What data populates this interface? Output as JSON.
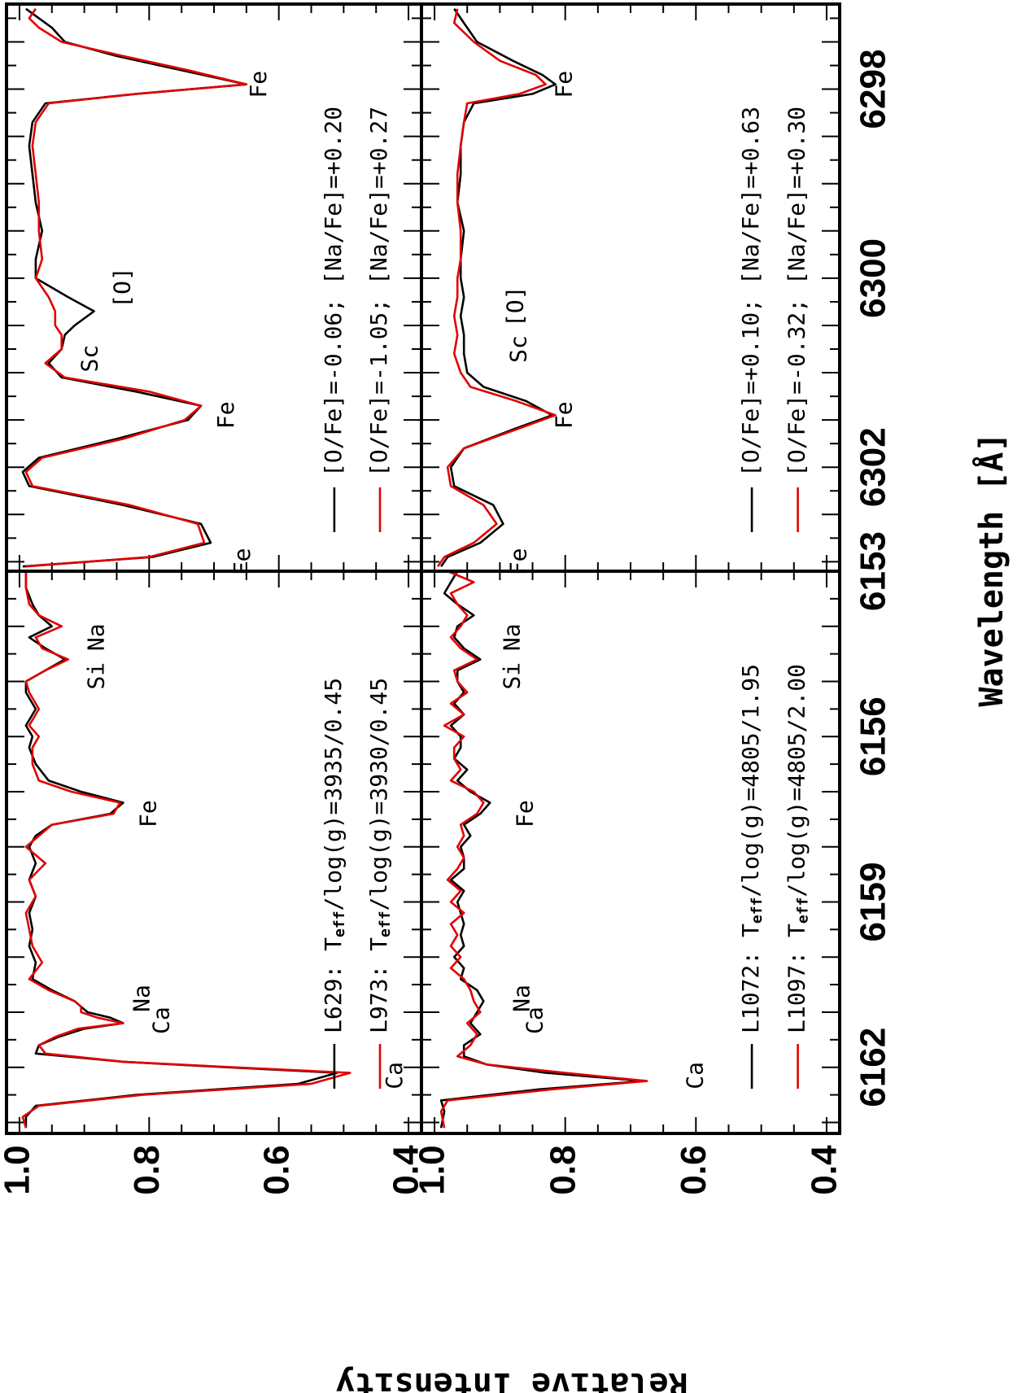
{
  "figure": {
    "xlabel": "Wavelength [Å]",
    "ylabel": "Relative Intensity",
    "y_ticks": [
      "1.0",
      "0.8",
      "0.6",
      "0.4"
    ],
    "left_x_ticks": [
      "6153",
      "6156",
      "6159",
      "6162"
    ],
    "right_x_ticks": [
      "6298",
      "6300",
      "6302"
    ]
  },
  "chart_data": [
    {
      "type": "line",
      "panel": "top-left",
      "xlim": [
        6153,
        6163.2
      ],
      "ylim": [
        0.38,
        1.02
      ],
      "legend": {
        "placement": "bottom-right",
        "entries": [
          {
            "label": "L629: T",
            "sub": "eff",
            "suffix": "/log(g)=3935/0.45"
          },
          {
            "label": "L973: T",
            "sub": "eff",
            "suffix": "/log(g)=3930/0.45"
          }
        ]
      },
      "line_labels": [
        {
          "text": "Na",
          "x": 6154.2,
          "y": 0.88
        },
        {
          "text": "Si",
          "x": 6154.9,
          "y": 0.88
        },
        {
          "text": "Fe",
          "x": 6157.4,
          "y": 0.8
        },
        {
          "text": "Na",
          "x": 6160.75,
          "y": 0.81
        },
        {
          "text": "Ca",
          "x": 6161.15,
          "y": 0.78
        },
        {
          "text": "Ca",
          "x": 6162.15,
          "y": 0.42
        }
      ],
      "series": [
        {
          "name": "L629",
          "color": "#000000",
          "x": [
            6153.0,
            6153.3,
            6153.6,
            6153.8,
            6154.0,
            6154.2,
            6154.4,
            6154.6,
            6154.8,
            6155.0,
            6155.2,
            6155.5,
            6155.8,
            6156.0,
            6156.2,
            6156.5,
            6156.8,
            6157.0,
            6157.2,
            6157.4,
            6157.6,
            6157.8,
            6158.0,
            6158.3,
            6158.6,
            6158.9,
            6159.2,
            6159.5,
            6159.8,
            6160.1,
            6160.4,
            6160.6,
            6160.8,
            6160.9,
            6161.0,
            6161.1,
            6161.2,
            6161.3,
            6161.45,
            6161.6,
            6161.75,
            6161.9,
            6162.0,
            6162.1,
            6162.3,
            6162.5,
            6162.7,
            6162.9,
            6163.1
          ],
          "y": [
            0.99,
            0.99,
            0.98,
            0.97,
            0.95,
            0.985,
            0.96,
            0.93,
            0.96,
            0.99,
            0.99,
            0.975,
            0.99,
            0.98,
            0.985,
            0.975,
            0.955,
            0.905,
            0.84,
            0.86,
            0.95,
            0.975,
            0.985,
            0.975,
            0.985,
            0.975,
            0.985,
            0.98,
            0.985,
            0.975,
            0.98,
            0.95,
            0.915,
            0.905,
            0.895,
            0.86,
            0.84,
            0.9,
            0.94,
            0.97,
            0.975,
            0.84,
            0.68,
            0.51,
            0.57,
            0.82,
            0.975,
            0.99,
            0.99
          ]
        },
        {
          "name": "L973",
          "color": "#e10000",
          "x": [
            6153.0,
            6153.3,
            6153.6,
            6153.8,
            6154.0,
            6154.2,
            6154.4,
            6154.6,
            6154.8,
            6155.0,
            6155.2,
            6155.5,
            6155.8,
            6156.0,
            6156.2,
            6156.5,
            6156.8,
            6157.0,
            6157.2,
            6157.4,
            6157.6,
            6157.8,
            6158.0,
            6158.3,
            6158.6,
            6158.9,
            6159.2,
            6159.5,
            6159.8,
            6160.1,
            6160.4,
            6160.6,
            6160.8,
            6160.9,
            6161.0,
            6161.1,
            6161.2,
            6161.3,
            6161.45,
            6161.6,
            6161.75,
            6161.9,
            6162.0,
            6162.1,
            6162.3,
            6162.5,
            6162.7,
            6162.9,
            6163.1
          ],
          "y": [
            0.99,
            0.99,
            0.985,
            0.97,
            0.935,
            0.975,
            0.965,
            0.925,
            0.96,
            0.99,
            0.985,
            0.97,
            0.985,
            0.97,
            0.98,
            0.98,
            0.97,
            0.92,
            0.845,
            0.855,
            0.95,
            0.97,
            0.99,
            0.96,
            0.985,
            0.975,
            0.99,
            0.985,
            0.98,
            0.965,
            0.985,
            0.955,
            0.915,
            0.905,
            0.905,
            0.88,
            0.84,
            0.91,
            0.945,
            0.97,
            0.96,
            0.84,
            0.67,
            0.49,
            0.55,
            0.81,
            0.97,
            0.995,
            0.99
          ]
        }
      ]
    },
    {
      "type": "line",
      "panel": "bottom-left",
      "xlim": [
        6153,
        6163.2
      ],
      "ylim": [
        0.38,
        1.02
      ],
      "legend": {
        "placement": "bottom-right",
        "entries": [
          {
            "label": "L1072: T",
            "sub": "eff",
            "suffix": "/log(g)=4805/1.95"
          },
          {
            "label": "L1097: T",
            "sub": "eff",
            "suffix": "/log(g)=4805/2.00"
          }
        ]
      },
      "line_labels": [
        {
          "text": "Na",
          "x": 6154.2,
          "y": 0.88
        },
        {
          "text": "Si",
          "x": 6154.9,
          "y": 0.88
        },
        {
          "text": "Fe",
          "x": 6157.4,
          "y": 0.86
        },
        {
          "text": "Na",
          "x": 6160.75,
          "y": 0.865
        },
        {
          "text": "Ca",
          "x": 6161.15,
          "y": 0.845
        },
        {
          "text": "Ca",
          "x": 6162.15,
          "y": 0.6
        }
      ],
      "series": [
        {
          "name": "L1072",
          "color": "#000000",
          "x": [
            6153.0,
            6153.2,
            6153.4,
            6153.6,
            6153.8,
            6154.0,
            6154.2,
            6154.4,
            6154.6,
            6154.8,
            6155.0,
            6155.2,
            6155.4,
            6155.6,
            6155.8,
            6156.0,
            6156.2,
            6156.4,
            6156.6,
            6156.8,
            6157.0,
            6157.2,
            6157.4,
            6157.6,
            6157.8,
            6158.0,
            6158.2,
            6158.4,
            6158.6,
            6158.8,
            6159.0,
            6159.2,
            6159.4,
            6159.6,
            6159.8,
            6160.0,
            6160.2,
            6160.4,
            6160.6,
            6160.8,
            6161.0,
            6161.2,
            6161.4,
            6161.6,
            6161.8,
            6161.95,
            6162.1,
            6162.25,
            6162.4,
            6162.6,
            6162.8,
            6163.1
          ],
          "y": [
            0.965,
            0.975,
            0.985,
            0.965,
            0.94,
            0.965,
            0.97,
            0.955,
            0.93,
            0.965,
            0.965,
            0.955,
            0.97,
            0.955,
            0.975,
            0.96,
            0.96,
            0.97,
            0.95,
            0.965,
            0.945,
            0.915,
            0.93,
            0.955,
            0.945,
            0.96,
            0.955,
            0.955,
            0.975,
            0.955,
            0.965,
            0.96,
            0.955,
            0.96,
            0.955,
            0.97,
            0.955,
            0.96,
            0.935,
            0.925,
            0.935,
            0.945,
            0.93,
            0.955,
            0.955,
            0.92,
            0.83,
            0.68,
            0.84,
            0.99,
            0.985,
            0.99
          ]
        },
        {
          "name": "L1097",
          "color": "#e10000",
          "x": [
            6153.0,
            6153.2,
            6153.4,
            6153.6,
            6153.8,
            6154.0,
            6154.2,
            6154.4,
            6154.6,
            6154.8,
            6155.0,
            6155.2,
            6155.4,
            6155.6,
            6155.8,
            6156.0,
            6156.2,
            6156.4,
            6156.6,
            6156.8,
            6157.0,
            6157.2,
            6157.4,
            6157.6,
            6157.8,
            6158.0,
            6158.2,
            6158.4,
            6158.6,
            6158.8,
            6159.0,
            6159.2,
            6159.4,
            6159.6,
            6159.8,
            6160.0,
            6160.2,
            6160.4,
            6160.6,
            6160.8,
            6161.0,
            6161.2,
            6161.4,
            6161.6,
            6161.8,
            6161.95,
            6162.1,
            6162.25,
            6162.4,
            6162.6,
            6162.8,
            6163.1
          ],
          "y": [
            0.98,
            0.94,
            0.975,
            0.965,
            0.95,
            0.96,
            0.975,
            0.96,
            0.935,
            0.97,
            0.965,
            0.95,
            0.975,
            0.955,
            0.985,
            0.955,
            0.97,
            0.97,
            0.96,
            0.975,
            0.94,
            0.925,
            0.935,
            0.96,
            0.955,
            0.965,
            0.955,
            0.965,
            0.98,
            0.96,
            0.975,
            0.955,
            0.975,
            0.965,
            0.975,
            0.96,
            0.975,
            0.955,
            0.945,
            0.94,
            0.93,
            0.95,
            0.935,
            0.945,
            0.965,
            0.92,
            0.8,
            0.675,
            0.82,
            0.98,
            0.99,
            0.985
          ]
        }
      ]
    },
    {
      "type": "line",
      "panel": "top-right",
      "xlim": [
        6297.1,
        6303.1
      ],
      "ylim": [
        0.38,
        1.02
      ],
      "legend": {
        "placement": "bottom-right",
        "entries": [
          {
            "label": "[O/Fe]=-0.06; [Na/Fe]=+0.20"
          },
          {
            "label": "[O/Fe]=-1.05; [Na/Fe]=+0.27"
          }
        ]
      },
      "line_labels": [
        {
          "text": "Fe",
          "x": 6297.95,
          "y": 0.63
        },
        {
          "text": "[O]",
          "x": 6300.1,
          "y": 0.84
        },
        {
          "text": "Sc",
          "x": 6300.85,
          "y": 0.89
        },
        {
          "text": "Fe",
          "x": 6301.45,
          "y": 0.68
        },
        {
          "text": "Fe",
          "x": 6303.0,
          "y": 0.655
        }
      ],
      "series": [
        {
          "name": "[O/Fe]=-0.06",
          "color": "#000000",
          "x": [
            6297.15,
            6297.25,
            6297.35,
            6297.5,
            6297.65,
            6297.8,
            6297.95,
            6298.05,
            6298.15,
            6298.35,
            6298.6,
            6298.9,
            6299.2,
            6299.5,
            6299.8,
            6300.0,
            6300.2,
            6300.35,
            6300.5,
            6300.6,
            6300.75,
            6300.9,
            6301.05,
            6301.2,
            6301.35,
            6301.5,
            6301.7,
            6301.9,
            6302.05,
            6302.2,
            6302.4,
            6302.6,
            6302.8,
            6302.95,
            6303.05
          ],
          "y": [
            0.99,
            0.97,
            0.95,
            0.93,
            0.85,
            0.75,
            0.65,
            0.82,
            0.96,
            0.98,
            0.985,
            0.98,
            0.975,
            0.965,
            0.975,
            0.975,
            0.925,
            0.885,
            0.915,
            0.93,
            0.935,
            0.955,
            0.935,
            0.82,
            0.72,
            0.74,
            0.85,
            0.97,
            0.995,
            0.985,
            0.84,
            0.72,
            0.705,
            0.795,
            0.995
          ]
        },
        {
          "name": "[O/Fe]=-1.05",
          "color": "#e10000",
          "x": [
            6297.15,
            6297.25,
            6297.35,
            6297.5,
            6297.65,
            6297.8,
            6297.95,
            6298.05,
            6298.15,
            6298.35,
            6298.6,
            6298.9,
            6299.2,
            6299.5,
            6299.8,
            6300.0,
            6300.2,
            6300.35,
            6300.5,
            6300.6,
            6300.75,
            6300.9,
            6301.05,
            6301.2,
            6301.35,
            6301.5,
            6301.7,
            6301.9,
            6302.05,
            6302.2,
            6302.4,
            6302.6,
            6302.8,
            6302.95,
            6303.05
          ],
          "y": [
            0.975,
            0.985,
            0.97,
            0.935,
            0.84,
            0.74,
            0.65,
            0.82,
            0.955,
            0.975,
            0.98,
            0.975,
            0.97,
            0.97,
            0.965,
            0.975,
            0.955,
            0.945,
            0.945,
            0.935,
            0.935,
            0.96,
            0.93,
            0.8,
            0.72,
            0.745,
            0.84,
            0.965,
            0.99,
            0.98,
            0.83,
            0.725,
            0.715,
            0.8,
            0.99
          ]
        }
      ]
    },
    {
      "type": "line",
      "panel": "bottom-right",
      "xlim": [
        6297.1,
        6303.1
      ],
      "ylim": [
        0.38,
        1.02
      ],
      "legend": {
        "placement": "bottom-right",
        "entries": [
          {
            "label": "[O/Fe]=+0.10; [Na/Fe]=+0.63"
          },
          {
            "label": "[O/Fe]=-0.32; [Na/Fe]=+0.30"
          }
        ]
      },
      "line_labels": [
        {
          "text": "Fe",
          "x": 6297.95,
          "y": 0.8
        },
        {
          "text": "[O]",
          "x": 6300.3,
          "y": 0.875
        },
        {
          "text": "Sc",
          "x": 6300.75,
          "y": 0.87
        },
        {
          "text": "Fe",
          "x": 6301.45,
          "y": 0.8
        },
        {
          "text": "Fe",
          "x": 6303.0,
          "y": 0.87
        }
      ],
      "series": [
        {
          "name": "[O/Fe]=+0.10",
          "color": "#000000",
          "x": [
            6297.15,
            6297.3,
            6297.5,
            6297.7,
            6297.85,
            6297.95,
            6298.05,
            6298.15,
            6298.35,
            6298.6,
            6298.9,
            6299.2,
            6299.5,
            6299.8,
            6300.0,
            6300.2,
            6300.4,
            6300.6,
            6300.8,
            6301.0,
            6301.15,
            6301.3,
            6301.45,
            6301.6,
            6301.8,
            6302.0,
            6302.2,
            6302.4,
            6302.6,
            6302.8,
            6302.95,
            6303.05
          ],
          "y": [
            0.97,
            0.955,
            0.935,
            0.88,
            0.835,
            0.815,
            0.85,
            0.94,
            0.955,
            0.96,
            0.96,
            0.965,
            0.955,
            0.96,
            0.96,
            0.955,
            0.96,
            0.955,
            0.955,
            0.95,
            0.925,
            0.86,
            0.82,
            0.88,
            0.955,
            0.975,
            0.97,
            0.91,
            0.895,
            0.93,
            0.98,
            0.99
          ]
        },
        {
          "name": "[O/Fe]=-0.32",
          "color": "#e10000",
          "x": [
            6297.15,
            6297.3,
            6297.5,
            6297.7,
            6297.85,
            6297.95,
            6298.05,
            6298.15,
            6298.35,
            6298.6,
            6298.9,
            6299.2,
            6299.5,
            6299.8,
            6300.0,
            6300.2,
            6300.4,
            6300.6,
            6300.8,
            6301.0,
            6301.15,
            6301.3,
            6301.45,
            6301.6,
            6301.8,
            6302.0,
            6302.2,
            6302.4,
            6302.6,
            6302.8,
            6302.95,
            6303.05
          ],
          "y": [
            0.965,
            0.97,
            0.94,
            0.9,
            0.845,
            0.83,
            0.87,
            0.95,
            0.955,
            0.96,
            0.965,
            0.965,
            0.96,
            0.96,
            0.965,
            0.965,
            0.97,
            0.965,
            0.97,
            0.96,
            0.945,
            0.875,
            0.815,
            0.875,
            0.955,
            0.98,
            0.975,
            0.925,
            0.905,
            0.94,
            0.985,
            0.995
          ]
        }
      ]
    }
  ]
}
